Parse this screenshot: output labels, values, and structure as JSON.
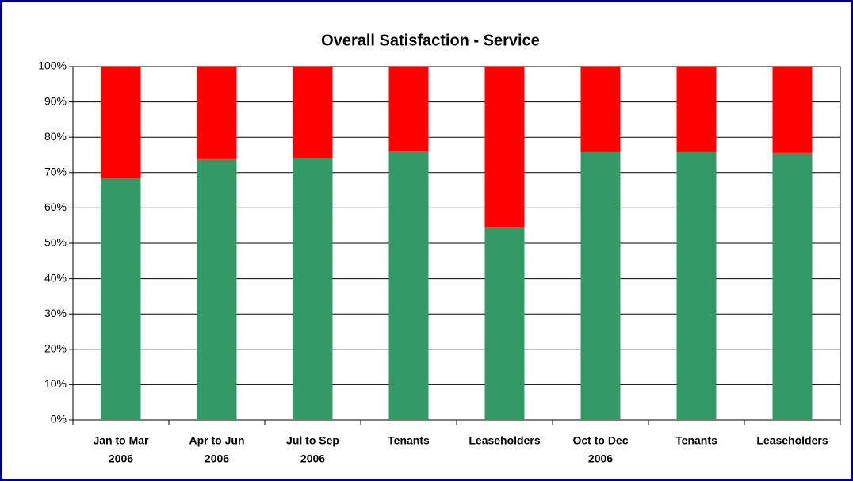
{
  "chart_data": {
    "type": "stacked_bar",
    "title": "Overall Satisfaction - Service",
    "categories": [
      [
        "Jan to Mar",
        "2006"
      ],
      [
        "Apr to Jun",
        "2006"
      ],
      [
        "Jul to Sep",
        "2006"
      ],
      [
        "Tenants"
      ],
      [
        "Leaseholders"
      ],
      [
        "Oct to Dec",
        "2006"
      ],
      [
        "Tenants"
      ],
      [
        "Leaseholders"
      ]
    ],
    "series": [
      {
        "color": "#339966",
        "values": [
          68.5,
          73.8,
          74,
          76,
          54.5,
          75.8,
          75.8,
          75.6
        ]
      },
      {
        "color": "#ff0000",
        "values": [
          31.5,
          26.2,
          26,
          24,
          45.5,
          24.2,
          24.2,
          24.4
        ]
      }
    ],
    "ylim": [
      0,
      100
    ],
    "yticks": [
      {
        "value": 0,
        "label": "0%"
      },
      {
        "value": 10,
        "label": "10%"
      },
      {
        "value": 20,
        "label": "20%"
      },
      {
        "value": 30,
        "label": "30%"
      },
      {
        "value": 40,
        "label": "40%"
      },
      {
        "value": 50,
        "label": "50%"
      },
      {
        "value": 60,
        "label": "60%"
      },
      {
        "value": 70,
        "label": "70%"
      },
      {
        "value": 80,
        "label": "80%"
      },
      {
        "value": 90,
        "label": "90%"
      },
      {
        "value": 100,
        "label": "100%"
      }
    ],
    "grid": true
  }
}
